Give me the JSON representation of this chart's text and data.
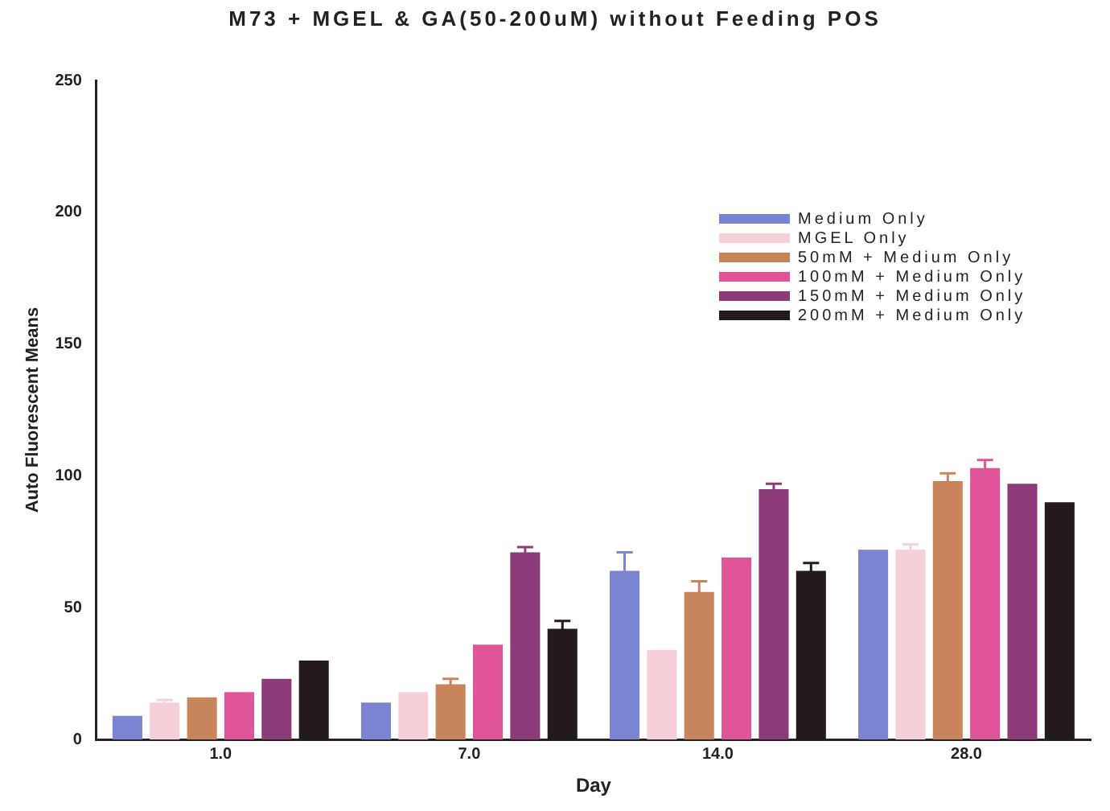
{
  "chart_data": {
    "type": "bar",
    "title": "M73 + MGEL & GA(50-200uM) without Feeding POS",
    "xlabel": "Day",
    "ylabel": "Auto Fluorescent Means",
    "categories": [
      "1.0",
      "7.0",
      "14.0",
      "28.0"
    ],
    "ylim": [
      0,
      250
    ],
    "yticks": [
      0,
      50,
      100,
      150,
      200,
      250
    ],
    "grid": false,
    "legend": "top right",
    "series": [
      {
        "name": "Medium Only",
        "color": "#7b84d0",
        "values": [
          9,
          14,
          64,
          72
        ],
        "errors": [
          null,
          null,
          7,
          null
        ]
      },
      {
        "name": "MGEL Only",
        "color": "#f6d0d8",
        "values": [
          14,
          18,
          34,
          72
        ],
        "errors": [
          1,
          null,
          null,
          2
        ]
      },
      {
        "name": "50mM + Medium Only",
        "color": "#c8845a",
        "values": [
          16,
          21,
          56,
          98
        ],
        "errors": [
          null,
          2,
          4,
          3
        ]
      },
      {
        "name": "100mM + Medium Only",
        "color": "#e0559a",
        "values": [
          18,
          36,
          69,
          103
        ],
        "errors": [
          null,
          null,
          null,
          3
        ]
      },
      {
        "name": "150mM + Medium Only",
        "color": "#8b3c78",
        "values": [
          23,
          71,
          95,
          97
        ],
        "errors": [
          null,
          2,
          2,
          null
        ]
      },
      {
        "name": "200mM + Medium Only",
        "color": "#231a1e",
        "values": [
          30,
          42,
          64,
          90
        ],
        "errors": [
          null,
          3,
          3,
          null
        ]
      }
    ]
  }
}
